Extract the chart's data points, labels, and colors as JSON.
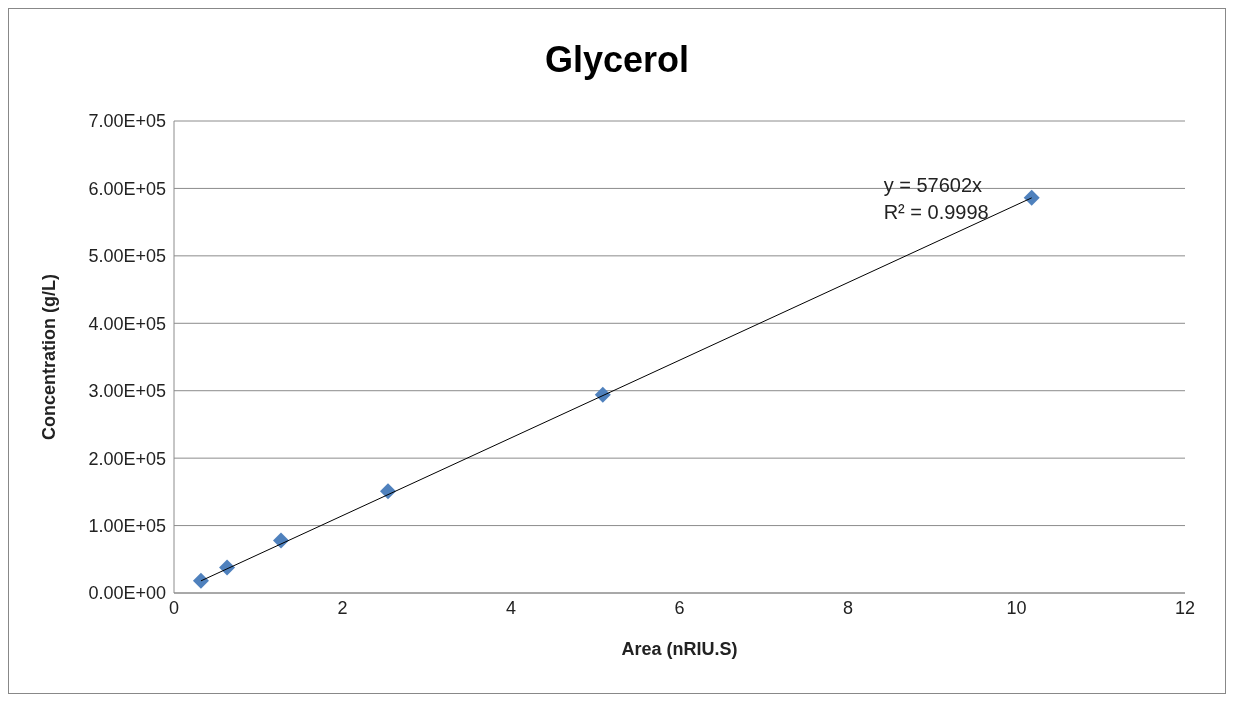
{
  "chart_data": {
    "type": "scatter",
    "title": "Glycerol",
    "xlabel": "Area (nRIU.S)",
    "ylabel": "Concentration  (g/L)",
    "series": [
      {
        "type": "scatter",
        "color": "#4f81bd",
        "marker": "diamond",
        "x": [
          0.32,
          0.63,
          1.27,
          2.54,
          5.09,
          10.18
        ],
        "values": [
          18000,
          38000,
          78000,
          151000,
          294000,
          586000
        ]
      },
      {
        "type": "line",
        "color": "#000000",
        "marker": "none",
        "line_style": "solid",
        "x": [
          0.32,
          10.18
        ],
        "values": [
          18000,
          586000
        ]
      }
    ],
    "annotations": [
      "y = 57602x",
      "R² = 0.9998"
    ],
    "xlim": [
      0,
      12
    ],
    "xticks": [
      0,
      2,
      4,
      6,
      8,
      10,
      12
    ],
    "ylim": [
      0,
      700000
    ],
    "yticks": [
      {
        "value": 0,
        "label": "0.00E+00"
      },
      {
        "value": 100000,
        "label": "1.00E+05"
      },
      {
        "value": 200000,
        "label": "2.00E+05"
      },
      {
        "value": 300000,
        "label": "3.00E+05"
      },
      {
        "value": 400000,
        "label": "4.00E+05"
      },
      {
        "value": 500000,
        "label": "5.00E+05"
      },
      {
        "value": 600000,
        "label": "6.00E+05"
      },
      {
        "value": 700000,
        "label": "7.00E+05"
      }
    ],
    "grid": "y",
    "legend": false
  }
}
